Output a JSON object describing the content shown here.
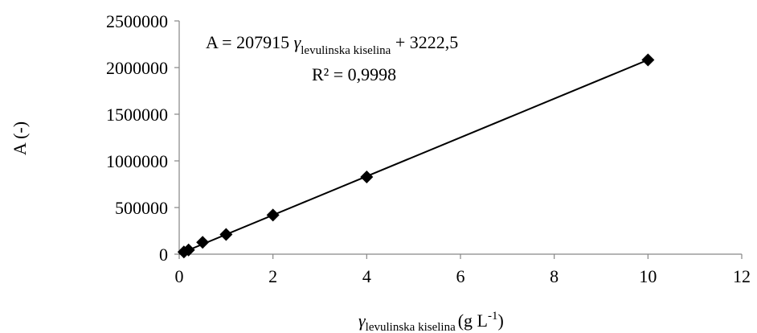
{
  "chart_data": {
    "type": "scatter",
    "title": "",
    "ylabel": "A (-)",
    "xlabel": {
      "symbol": "γ",
      "subscript": "levulinska kiselina",
      "unit_prefix": "(g L",
      "unit_exp": "-1",
      "unit_suffix": ")"
    },
    "xlim": [
      0,
      12
    ],
    "ylim": [
      0,
      2500000
    ],
    "x_ticks": [
      0,
      2,
      4,
      6,
      8,
      10,
      12
    ],
    "x_tick_labels": [
      "0",
      "2",
      "4",
      "6",
      "8",
      "10",
      "12"
    ],
    "y_ticks": [
      0,
      500000,
      1000000,
      1500000,
      2000000,
      2500000
    ],
    "y_tick_labels": [
      "0",
      "500000",
      "1000000",
      "1500000",
      "2000000",
      "2500000"
    ],
    "grid": false,
    "legend": "none",
    "marker": "diamond",
    "series": [
      {
        "x": [
          0.1,
          0.2,
          0.5,
          1,
          2,
          4,
          10
        ],
        "y": [
          24000,
          45000,
          127000,
          211000,
          419000,
          828000,
          2082000
        ]
      }
    ],
    "trendline": {
      "slope": 207915,
      "intercept": 3222.5,
      "x_range": [
        0,
        10
      ]
    },
    "annotation": {
      "eq_prefix": "A = 207915 ",
      "eq_symbol": "γ",
      "eq_subscript": "levulinska kiselina",
      "eq_suffix": " + 3222,5",
      "r2": "R² = 0,9998"
    },
    "colors": {
      "marker": "#000000",
      "line": "#000000",
      "axis": "#868686"
    }
  }
}
